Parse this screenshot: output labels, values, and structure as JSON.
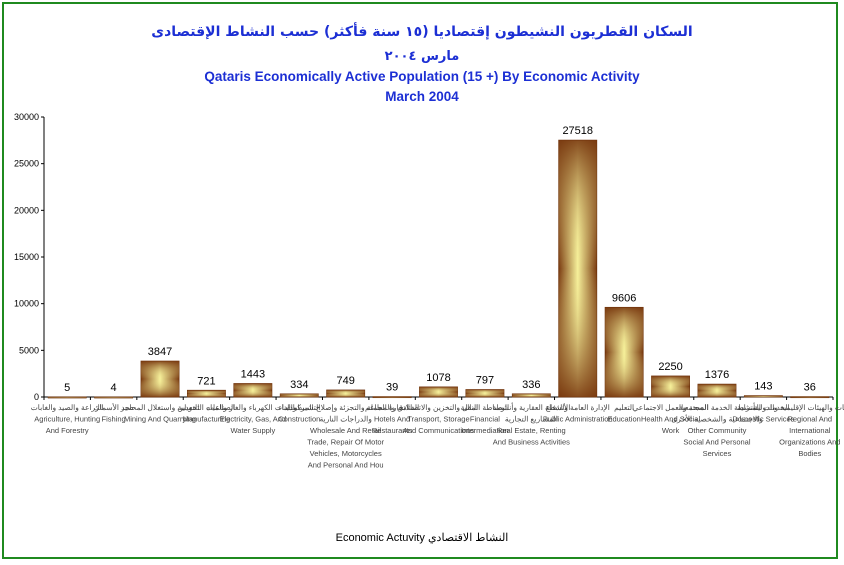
{
  "title_ar": "السكان القطريون النشيطون إقتصاديا (١٥ سنة فأكثر) حسب النشاط الإقتصادى",
  "date_ar": "مارس ٢٠٠٤",
  "title_en": "Qataris Economically Active Population (15 +) By Economic Activity",
  "date_en": "March 2004",
  "colors": {
    "frame": "#1f8a1f",
    "title": "#1c2fd4",
    "bar_dark": "#7a3a10",
    "bar_light": "#f6f09a"
  },
  "chart_data": {
    "type": "bar",
    "title": "Qataris Economically Active Population (15 +) By Economic Activity",
    "subtitle": "March 2004",
    "xlabel": "Economic Actuvity النشاط الاقتصادي",
    "ylabel": "",
    "ylim": [
      0,
      30000
    ],
    "yticks": [
      0,
      5000,
      10000,
      15000,
      20000,
      25000,
      30000
    ],
    "categories": [
      [
        "الزراعة والصيد والغابات",
        "Agriculture, Hunting",
        "And Forestry"
      ],
      [
        "صيد الأسماك",
        "Fishing"
      ],
      [
        "التعدين واستغلال المحاجر",
        "Mining And Quarrying"
      ],
      [
        "الصناعات التحويلية",
        "Manufacturing"
      ],
      [
        "امدادات الكهرباء والغاز والمياه",
        "Electricity, Gas, And",
        "Water Supply"
      ],
      [
        "التشييد والبناء",
        "Construction"
      ],
      [
        "تجارة الجملة والتجزئة وإصلاح المركبات",
        "والدراجات النارية",
        "Wholesale And Retail",
        "Trade, Repair Of Motor",
        "Vehicles, Motorcycles",
        "And Personal And Hou"
      ],
      [
        "الفنادق والمطاعم",
        "Hotels And",
        "Restaurants"
      ],
      [
        "النقل والتخزين والاتصالات",
        "Transport, Storage",
        "And Communications"
      ],
      [
        "الوساطة المالية",
        "Financial",
        "Intermediation"
      ],
      [
        "الأنشطة العقارية وأنشطة",
        "المشاريع التجارية",
        "Real Estate, Renting",
        "And Business Activities"
      ],
      [
        "الإدارة العامة والدفاع",
        "Public Administration"
      ],
      [
        "التعليم",
        "Education"
      ],
      [
        "الصحة والعمل الاجتماعي",
        "Health And Social",
        "Work"
      ],
      [
        "أنشطة الخدمة المجتمعية",
        "والاجتماعية والشخصية الأخرى",
        "Other Community",
        "Social And Personal",
        "Services"
      ],
      [
        "الخدمات المنزلية",
        "Domestic Services"
      ],
      [
        "المنظمات والهيئات الإقليمية والدولية",
        "Regional And",
        "International",
        "Organizations And",
        "Bodies"
      ]
    ],
    "values": [
      5,
      4,
      3847,
      721,
      1443,
      334,
      749,
      39,
      1078,
      797,
      336,
      27518,
      9606,
      2250,
      1376,
      143,
      36
    ]
  }
}
